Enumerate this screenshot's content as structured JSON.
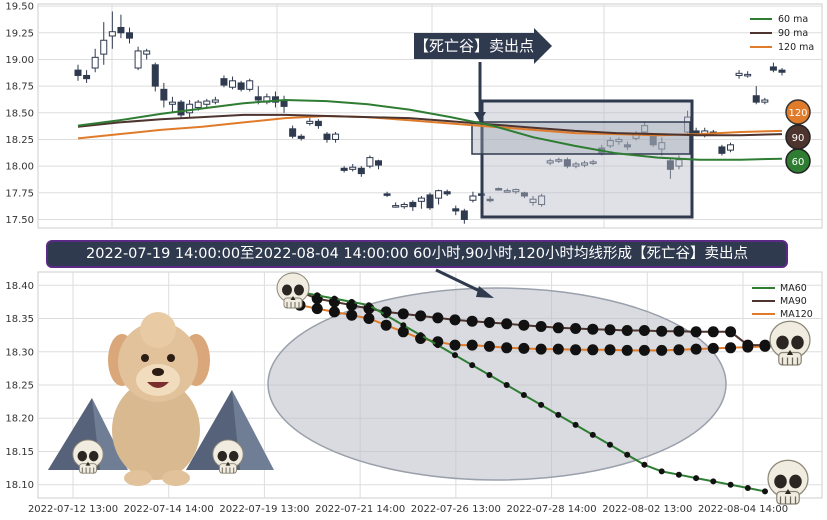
{
  "caption": "2022-07-19 14:00:00至2022-08-04 14:00:00 60小时,90小时,120小时均线形成【死亡谷】卖出点",
  "callout": "【死亡谷】卖出点",
  "badges": [
    "120",
    "90",
    "60"
  ],
  "colors": {
    "ma60": "#2e7d32",
    "ma90": "#4e342e",
    "ma120": "#e07b2a",
    "up_fill": "#ffffff",
    "down_fill": "#2f3a4f"
  },
  "chart_data": [
    {
      "type": "candlestick",
      "title": "",
      "legend": [
        "60 ma",
        "90 ma",
        "120 ma"
      ],
      "legend_position": "top-right",
      "ylim": [
        17.42,
        19.52
      ],
      "yticks": [
        17.5,
        17.75,
        18.0,
        18.25,
        18.5,
        18.75,
        19.0,
        19.25,
        19.5
      ],
      "ytick_labels": [
        "17.50",
        "17.75",
        "18.00",
        "18.25",
        "18.50",
        "18.75",
        "19.00",
        "19.25",
        "19.50"
      ],
      "grid": true,
      "candles": [
        [
          18.9,
          18.85,
          18.95,
          18.8
        ],
        [
          18.85,
          18.82,
          18.9,
          18.78
        ],
        [
          18.92,
          19.02,
          19.1,
          18.88
        ],
        [
          19.05,
          19.18,
          19.35,
          18.95
        ],
        [
          19.22,
          19.26,
          19.45,
          19.1
        ],
        [
          19.3,
          19.25,
          19.42,
          19.2
        ],
        [
          19.25,
          19.2,
          19.3,
          19.15
        ],
        [
          18.92,
          19.08,
          19.12,
          18.9
        ],
        [
          19.05,
          19.08,
          19.1,
          19.0
        ],
        [
          18.95,
          18.75,
          18.97,
          18.7
        ],
        [
          18.72,
          18.62,
          18.78,
          18.55
        ],
        [
          18.58,
          18.6,
          18.65,
          18.5
        ],
        [
          18.6,
          18.48,
          18.62,
          18.45
        ],
        [
          18.5,
          18.58,
          18.62,
          18.45
        ],
        [
          18.55,
          18.6,
          18.62,
          18.52
        ],
        [
          18.58,
          18.61,
          18.63,
          18.55
        ],
        [
          18.6,
          18.62,
          18.65,
          18.58
        ],
        [
          18.82,
          18.76,
          18.85,
          18.74
        ],
        [
          18.74,
          18.8,
          18.84,
          18.72
        ],
        [
          18.78,
          18.72,
          18.8,
          18.7
        ],
        [
          18.72,
          18.8,
          18.82,
          18.7
        ],
        [
          18.65,
          18.62,
          18.75,
          18.58
        ],
        [
          18.6,
          18.65,
          18.68,
          18.58
        ],
        [
          18.65,
          18.6,
          18.7,
          18.55
        ],
        [
          18.62,
          18.56,
          18.66,
          18.5
        ],
        [
          18.35,
          18.28,
          18.38,
          18.26
        ],
        [
          18.28,
          18.26,
          18.3,
          18.24
        ],
        [
          18.4,
          18.42,
          18.45,
          18.38
        ],
        [
          18.42,
          18.38,
          18.44,
          18.35
        ],
        [
          18.3,
          18.25,
          18.32,
          18.22
        ],
        [
          18.25,
          18.3,
          18.32,
          18.22
        ],
        [
          17.98,
          17.96,
          18.0,
          17.94
        ],
        [
          17.97,
          17.99,
          18.02,
          17.95
        ],
        [
          17.98,
          17.93,
          18.0,
          17.9
        ],
        [
          18.0,
          18.08,
          18.1,
          17.98
        ],
        [
          18.05,
          18.01,
          18.06,
          17.97
        ],
        [
          17.74,
          17.73,
          17.76,
          17.71
        ],
        [
          17.63,
          17.63,
          17.66,
          17.61
        ],
        [
          17.62,
          17.64,
          17.66,
          17.6
        ],
        [
          17.66,
          17.62,
          17.68,
          17.58
        ],
        [
          17.67,
          17.7,
          17.72,
          17.6
        ],
        [
          17.73,
          17.61,
          17.75,
          17.59
        ],
        [
          17.7,
          17.77,
          17.78,
          17.64
        ],
        [
          17.76,
          17.74,
          17.78,
          17.72
        ],
        [
          17.6,
          17.58,
          17.63,
          17.54
        ],
        [
          17.58,
          17.5,
          17.6,
          17.46
        ],
        [
          17.68,
          17.72,
          17.76,
          17.66
        ],
        [
          17.74,
          17.73,
          17.76,
          17.7
        ],
        [
          17.69,
          17.68,
          17.72,
          17.66
        ],
        [
          17.79,
          17.78,
          17.8,
          17.77
        ],
        [
          17.77,
          17.77,
          17.79,
          17.75
        ],
        [
          17.76,
          17.78,
          17.79,
          17.74
        ],
        [
          17.75,
          17.72,
          17.76,
          17.7
        ],
        [
          17.66,
          17.69,
          17.72,
          17.63
        ],
        [
          17.64,
          17.72,
          17.74,
          17.62
        ],
        [
          18.03,
          18.05,
          18.07,
          18.01
        ],
        [
          18.05,
          18.06,
          18.08,
          18.03
        ],
        [
          18.06,
          18.0,
          18.08,
          17.98
        ],
        [
          18.0,
          18.02,
          18.04,
          17.98
        ],
        [
          18.01,
          18.03,
          18.05,
          17.99
        ],
        [
          18.03,
          18.04,
          18.06,
          18.01
        ],
        [
          18.17,
          18.12,
          18.2,
          18.1
        ],
        [
          18.19,
          18.24,
          18.27,
          18.17
        ],
        [
          18.23,
          18.25,
          18.27,
          18.2
        ],
        [
          18.2,
          18.18,
          18.23,
          18.15
        ],
        [
          18.26,
          18.3,
          18.33,
          18.24
        ],
        [
          18.32,
          18.38,
          18.42,
          18.3
        ],
        [
          18.28,
          18.2,
          18.3,
          18.18
        ],
        [
          18.16,
          18.22,
          18.27,
          18.1
        ],
        [
          18.05,
          17.97,
          18.08,
          17.88
        ],
        [
          18.0,
          18.06,
          18.1,
          17.97
        ],
        [
          18.32,
          18.46,
          18.52,
          18.3
        ],
        [
          18.33,
          18.3,
          18.36,
          18.28
        ],
        [
          18.3,
          18.33,
          18.36,
          18.27
        ],
        [
          18.31,
          18.32,
          18.34,
          18.29
        ],
        [
          18.18,
          18.12,
          18.2,
          18.1
        ],
        [
          18.15,
          18.2,
          18.22,
          18.13
        ],
        [
          18.85,
          18.87,
          18.9,
          18.82
        ],
        [
          18.85,
          18.86,
          18.89,
          18.83
        ],
        [
          18.66,
          18.6,
          18.75,
          18.58
        ],
        [
          18.6,
          18.62,
          18.64,
          18.58
        ],
        [
          18.93,
          18.9,
          18.97,
          18.88
        ],
        [
          18.9,
          18.88,
          18.92,
          18.85
        ]
      ],
      "ma60": [
        18.38,
        18.43,
        18.49,
        18.54,
        18.59,
        18.62,
        18.61,
        18.58,
        18.53,
        18.46,
        18.38,
        18.27,
        18.19,
        18.12,
        18.08,
        18.06,
        18.06,
        18.07
      ],
      "ma90": [
        18.37,
        18.41,
        18.44,
        18.46,
        18.48,
        18.48,
        18.47,
        18.46,
        18.45,
        18.42,
        18.39,
        18.36,
        18.33,
        18.31,
        18.3,
        18.29,
        18.29,
        18.3
      ],
      "ma120": [
        18.26,
        18.3,
        18.34,
        18.37,
        18.41,
        18.45,
        18.47,
        18.46,
        18.43,
        18.4,
        18.37,
        18.34,
        18.31,
        18.3,
        18.29,
        18.3,
        18.32,
        18.33
      ]
    },
    {
      "type": "line",
      "title": "",
      "x_tick_labels": [
        "2022-07-12 13:00",
        "2022-07-14 14:00",
        "2022-07-19 13:00",
        "2022-07-21 14:00",
        "2022-07-26 13:00",
        "2022-07-28 14:00",
        "2022-08-02 13:00",
        "2022-08-04 14:00"
      ],
      "ylim": [
        18.08,
        18.42
      ],
      "yticks": [
        18.1,
        18.15,
        18.2,
        18.25,
        18.3,
        18.35,
        18.4
      ],
      "ytick_labels": [
        "18.10",
        "18.15",
        "18.20",
        "18.25",
        "18.30",
        "18.35",
        "18.40"
      ],
      "legend_position": "top-right",
      "grid": true,
      "series": [
        {
          "name": "MA60",
          "values": [
            18.39,
            18.385,
            18.38,
            18.375,
            18.37,
            18.355,
            18.34,
            18.325,
            18.31,
            18.295,
            18.28,
            18.265,
            18.25,
            18.235,
            18.22,
            18.205,
            18.19,
            18.175,
            18.16,
            18.145,
            18.13,
            18.12,
            18.115,
            18.11,
            18.105,
            18.1,
            18.095,
            18.09
          ]
        },
        {
          "name": "MA90",
          "values": [
            18.39,
            18.38,
            18.375,
            18.37,
            18.365,
            18.36,
            18.357,
            18.354,
            18.351,
            18.348,
            18.346,
            18.344,
            18.342,
            18.34,
            18.338,
            18.336,
            18.335,
            18.334,
            18.333,
            18.332,
            18.332,
            18.331,
            18.331,
            18.33,
            18.33,
            18.33,
            18.31,
            18.31
          ]
        },
        {
          "name": "MA120",
          "values": [
            18.37,
            18.365,
            18.36,
            18.355,
            18.35,
            18.34,
            18.33,
            18.32,
            18.315,
            18.31,
            18.31,
            18.308,
            18.306,
            18.305,
            18.304,
            18.304,
            18.303,
            18.303,
            18.303,
            18.302,
            18.302,
            18.302,
            18.303,
            18.304,
            18.305,
            18.306,
            18.307,
            18.308
          ]
        }
      ]
    }
  ]
}
